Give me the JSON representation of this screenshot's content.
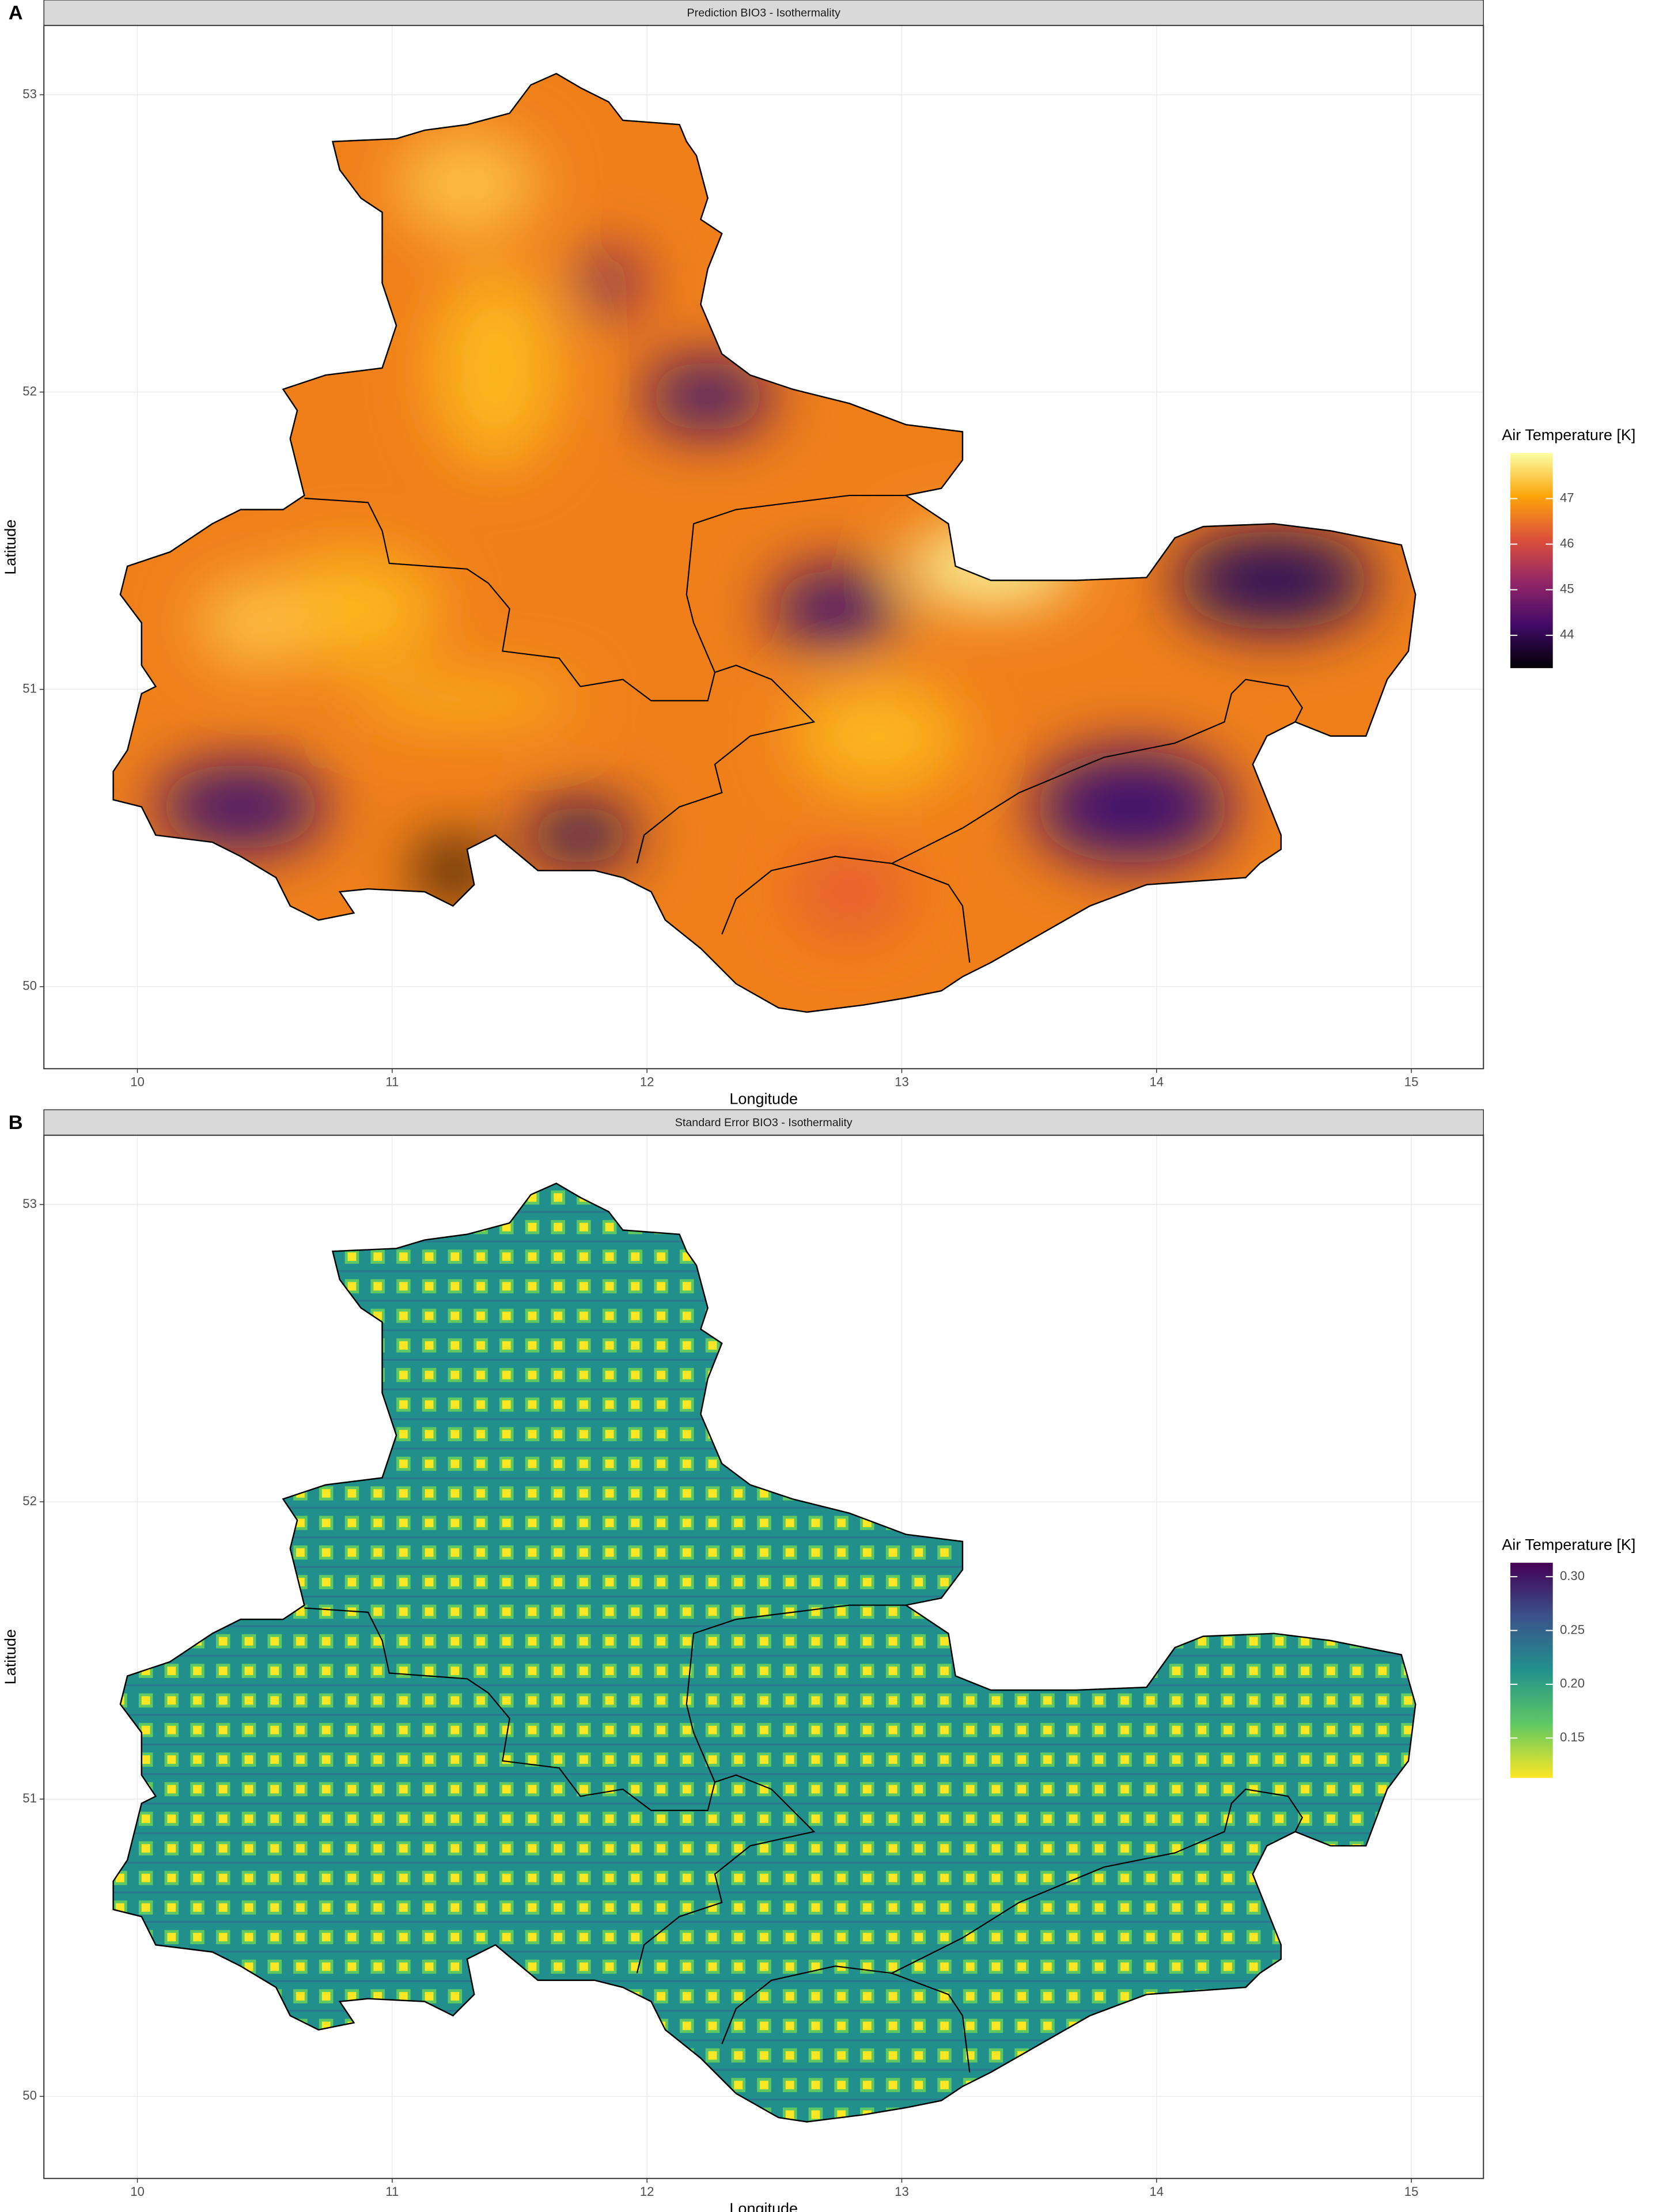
{
  "chart_data": [
    {
      "type": "map",
      "panel_label": "A",
      "title": "Prediction BIO3 - Isothermality",
      "xlabel": "Longitude",
      "ylabel": "Latitude",
      "xlim": [
        9.633,
        15.283
      ],
      "ylim": [
        49.724,
        53.233
      ],
      "xticks": [
        10,
        11,
        12,
        13,
        14,
        15
      ],
      "yticks": [
        50,
        51,
        52,
        53
      ],
      "grid": true,
      "legend_title": "Air Temperature [K]",
      "colormap": "inferno",
      "colorbar_lim": [
        43.28,
        48.0
      ],
      "colorbar_ticks": [
        44,
        45,
        46,
        47
      ]
    },
    {
      "type": "map",
      "panel_label": "B",
      "title": "Standard Error BIO3 - Isothermality",
      "xlabel": "Longitude",
      "ylabel": "Latitude",
      "xlim": [
        9.633,
        15.283
      ],
      "ylim": [
        49.724,
        53.233
      ],
      "xticks": [
        10,
        11,
        12,
        13,
        14,
        15
      ],
      "yticks": [
        50,
        51,
        52,
        53
      ],
      "grid": true,
      "legend_title": "Air Temperature [K]",
      "colormap": "viridis-reversed",
      "colorbar_lim": [
        0.113,
        0.313
      ],
      "colorbar_ticks": [
        {
          "value": 0.3,
          "label": "0.30"
        },
        0.25,
        {
          "value": 0.2,
          "label": "0.20"
        },
        0.15
      ]
    }
  ]
}
